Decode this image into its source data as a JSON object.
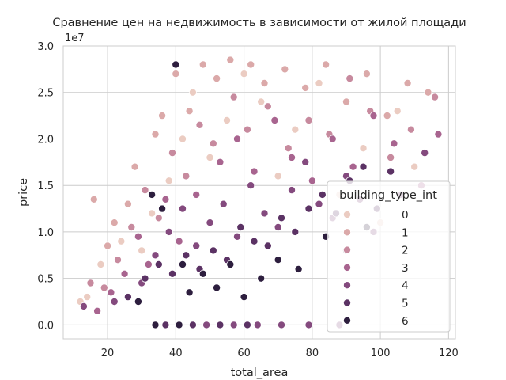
{
  "chart_data": {
    "type": "scatter",
    "title": "Сравнение цен на недвижимость в зависимости от жилой площади",
    "xlabel": "total_area",
    "ylabel": "price",
    "y_offset_text": "1e7",
    "y_multiplier": 10000000,
    "xlim": [
      7,
      122
    ],
    "ylim": [
      -1500000,
      30000000
    ],
    "x_ticks": [
      20,
      40,
      60,
      80,
      100,
      120
    ],
    "x_tick_labels": [
      "20",
      "40",
      "60",
      "80",
      "100",
      "120"
    ],
    "y_ticks": [
      0,
      5000000,
      10000000,
      15000000,
      20000000,
      25000000,
      30000000
    ],
    "y_tick_labels": [
      "0.0",
      "0.5",
      "1.0",
      "1.5",
      "2.0",
      "2.5",
      "3.0"
    ],
    "grid": true,
    "legend": {
      "title": "building_type_int",
      "placement": "lower-right",
      "entries": [
        {
          "label": "0",
          "color": "#ebccc2"
        },
        {
          "label": "1",
          "color": "#dba9a9"
        },
        {
          "label": "2",
          "color": "#c78a9e"
        },
        {
          "label": "3",
          "color": "#a8648f"
        },
        {
          "label": "4",
          "color": "#844a7e"
        },
        {
          "label": "5",
          "color": "#5b3264"
        },
        {
          "label": "6",
          "color": "#2d1e3e"
        }
      ]
    },
    "series": [
      {
        "name": "0",
        "color": "#ebccc2",
        "points": [
          [
            12,
            2500000
          ],
          [
            14,
            3000000
          ],
          [
            18,
            6500000
          ],
          [
            24,
            9000000
          ],
          [
            30,
            8000000
          ],
          [
            33,
            12000000
          ],
          [
            38,
            15500000
          ],
          [
            42,
            20000000
          ],
          [
            45,
            25000000
          ],
          [
            50,
            18000000
          ],
          [
            55,
            22000000
          ],
          [
            60,
            27000000
          ],
          [
            65,
            24000000
          ],
          [
            70,
            16000000
          ],
          [
            75,
            21000000
          ],
          [
            82,
            26000000
          ],
          [
            88,
            14000000
          ],
          [
            95,
            19000000
          ],
          [
            100,
            11000000
          ],
          [
            105,
            23000000
          ],
          [
            110,
            17000000
          ]
        ]
      },
      {
        "name": "1",
        "color": "#dba9a9",
        "points": [
          [
            16,
            13500000
          ],
          [
            20,
            8500000
          ],
          [
            22,
            11000000
          ],
          [
            26,
            13000000
          ],
          [
            28,
            17000000
          ],
          [
            34,
            20500000
          ],
          [
            36,
            22500000
          ],
          [
            40,
            27000000
          ],
          [
            44,
            23000000
          ],
          [
            48,
            28000000
          ],
          [
            52,
            26500000
          ],
          [
            56,
            28500000
          ],
          [
            62,
            28000000
          ],
          [
            66,
            26000000
          ],
          [
            72,
            27500000
          ],
          [
            78,
            25500000
          ],
          [
            84,
            28000000
          ],
          [
            90,
            24000000
          ],
          [
            96,
            27000000
          ],
          [
            102,
            22500000
          ],
          [
            108,
            26000000
          ],
          [
            114,
            25000000
          ]
        ]
      },
      {
        "name": "2",
        "color": "#c78a9e",
        "points": [
          [
            15,
            4500000
          ],
          [
            19,
            4000000
          ],
          [
            23,
            7000000
          ],
          [
            27,
            10500000
          ],
          [
            31,
            14500000
          ],
          [
            35,
            11500000
          ],
          [
            39,
            18500000
          ],
          [
            43,
            16000000
          ],
          [
            47,
            21500000
          ],
          [
            51,
            19500000
          ],
          [
            57,
            24500000
          ],
          [
            61,
            21000000
          ],
          [
            67,
            23500000
          ],
          [
            73,
            19000000
          ],
          [
            79,
            22000000
          ],
          [
            85,
            20500000
          ],
          [
            91,
            26500000
          ],
          [
            97,
            23000000
          ],
          [
            103,
            18000000
          ],
          [
            109,
            21000000
          ],
          [
            116,
            24500000
          ]
        ]
      },
      {
        "name": "3",
        "color": "#a8648f",
        "points": [
          [
            17,
            1500000
          ],
          [
            21,
            3500000
          ],
          [
            25,
            5500000
          ],
          [
            29,
            9500000
          ],
          [
            32,
            6500000
          ],
          [
            37,
            13500000
          ],
          [
            41,
            9000000
          ],
          [
            46,
            14000000
          ],
          [
            53,
            17500000
          ],
          [
            58,
            20000000
          ],
          [
            63,
            16500000
          ],
          [
            69,
            22000000
          ],
          [
            74,
            18000000
          ],
          [
            80,
            15500000
          ],
          [
            86,
            20000000
          ],
          [
            92,
            17000000
          ],
          [
            98,
            22500000
          ],
          [
            104,
            19500000
          ],
          [
            112,
            15000000
          ],
          [
            117,
            20500000
          ]
        ]
      },
      {
        "name": "4",
        "color": "#844a7e",
        "points": [
          [
            13,
            2000000
          ],
          [
            22,
            2500000
          ],
          [
            30,
            4500000
          ],
          [
            34,
            7500000
          ],
          [
            38,
            10000000
          ],
          [
            42,
            12500000
          ],
          [
            46,
            8500000
          ],
          [
            50,
            11000000
          ],
          [
            54,
            13000000
          ],
          [
            58,
            9500000
          ],
          [
            62,
            15000000
          ],
          [
            66,
            12000000
          ],
          [
            70,
            10500000
          ],
          [
            74,
            14500000
          ],
          [
            78,
            17500000
          ],
          [
            82,
            13000000
          ],
          [
            86,
            11500000
          ],
          [
            90,
            16000000
          ],
          [
            94,
            13500000
          ],
          [
            98,
            10000000
          ],
          [
            106,
            14000000
          ],
          [
            113,
            18500000
          ],
          [
            49,
            0
          ],
          [
            57,
            0
          ],
          [
            64,
            0
          ],
          [
            71,
            0
          ],
          [
            79,
            0
          ],
          [
            88,
            0
          ]
        ]
      },
      {
        "name": "5",
        "color": "#5b3264",
        "points": [
          [
            26,
            3000000
          ],
          [
            31,
            5000000
          ],
          [
            35,
            6500000
          ],
          [
            39,
            5500000
          ],
          [
            43,
            7500000
          ],
          [
            47,
            6000000
          ],
          [
            51,
            8000000
          ],
          [
            55,
            7000000
          ],
          [
            59,
            10500000
          ],
          [
            63,
            9000000
          ],
          [
            67,
            8500000
          ],
          [
            71,
            11500000
          ],
          [
            75,
            10000000
          ],
          [
            79,
            12500000
          ],
          [
            83,
            14000000
          ],
          [
            87,
            12000000
          ],
          [
            91,
            15500000
          ],
          [
            95,
            17000000
          ],
          [
            99,
            12500000
          ],
          [
            103,
            16500000
          ],
          [
            37,
            0
          ],
          [
            45,
            0
          ],
          [
            53,
            0
          ],
          [
            61,
            0
          ]
        ]
      },
      {
        "name": "6",
        "color": "#2d1e3e",
        "points": [
          [
            29,
            2500000
          ],
          [
            33,
            14000000
          ],
          [
            36,
            12500000
          ],
          [
            40,
            28000000
          ],
          [
            42,
            6500000
          ],
          [
            44,
            3500000
          ],
          [
            48,
            5500000
          ],
          [
            52,
            4000000
          ],
          [
            56,
            6500000
          ],
          [
            60,
            3000000
          ],
          [
            65,
            5000000
          ],
          [
            70,
            7000000
          ],
          [
            76,
            6000000
          ],
          [
            84,
            9500000
          ],
          [
            90,
            8000000
          ],
          [
            96,
            10500000
          ],
          [
            34,
            0
          ],
          [
            41,
            0
          ]
        ]
      }
    ]
  }
}
